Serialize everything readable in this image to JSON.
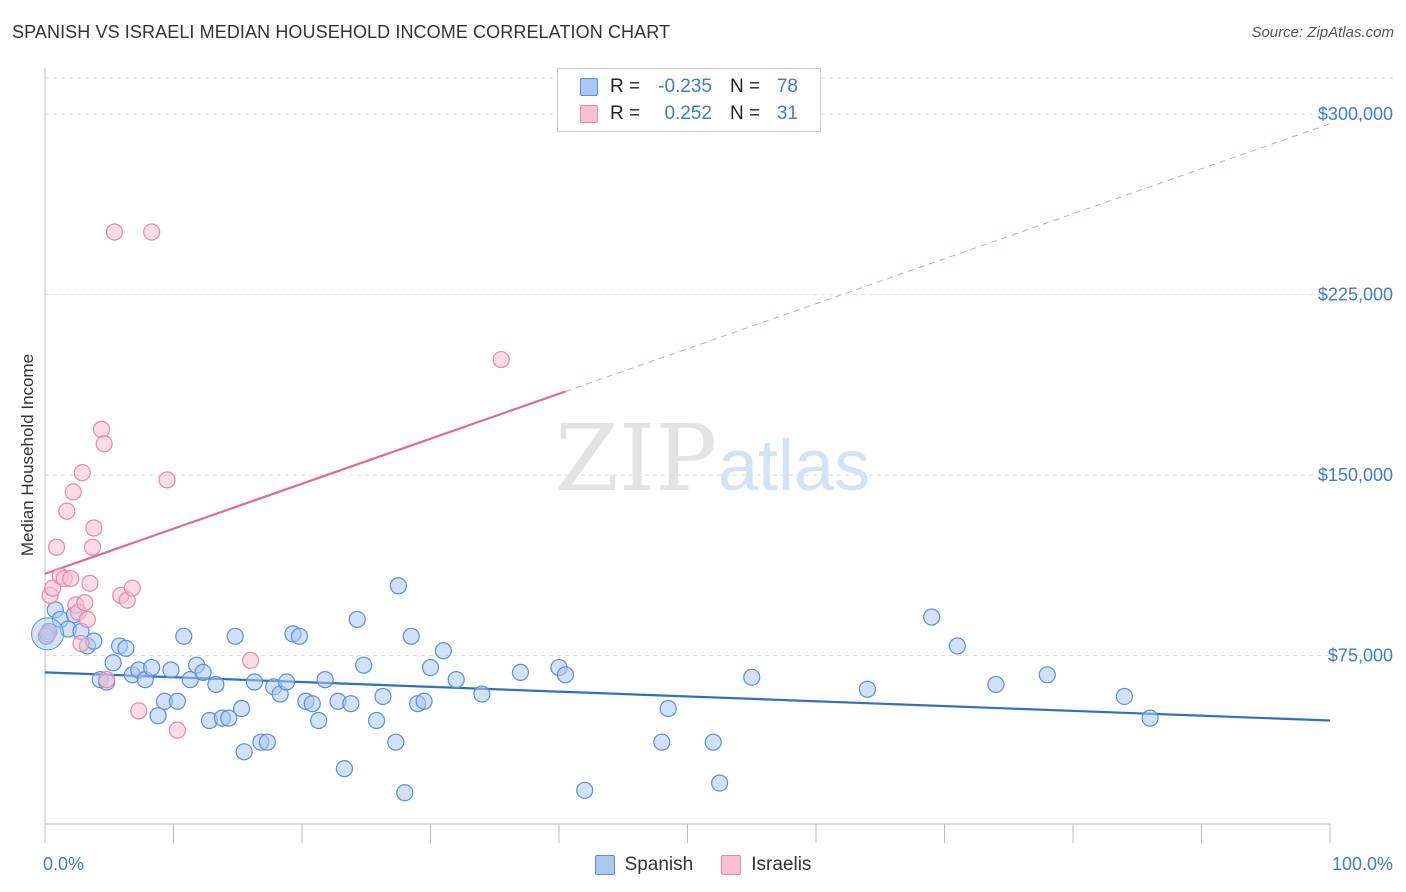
{
  "title": "SPANISH VS ISRAELI MEDIAN HOUSEHOLD INCOME CORRELATION CHART",
  "source": "Source: ZipAtlas.com",
  "watermark": {
    "zip": "ZIP",
    "atlas": "atlas"
  },
  "legend": {
    "rows": [
      {
        "r_label": "R =",
        "r_value": "-0.235",
        "n_label": "N =",
        "n_value": "78",
        "color": "#a9c8f2",
        "border": "#5b8fd6"
      },
      {
        "r_label": "R =",
        "r_value": "0.252",
        "n_label": "N =",
        "n_value": "31",
        "color": "#f7bfd0",
        "border": "#e58aa8"
      }
    ]
  },
  "bottom_legend": [
    {
      "label": "Spanish",
      "color": "#a9c8f2",
      "border": "#5b8fd6"
    },
    {
      "label": "Israelis",
      "color": "#f7bfd0",
      "border": "#e58aa8"
    }
  ],
  "chart_data": {
    "type": "scatter",
    "title": "SPANISH VS ISRAELI MEDIAN HOUSEHOLD INCOME CORRELATION CHART",
    "xlabel": "",
    "ylabel": "Median Household Income",
    "xlim": [
      0,
      100
    ],
    "ylim": [
      5000,
      315000
    ],
    "x_tick_labels": [
      "0.0%",
      "100.0%"
    ],
    "y_ticks": [
      75000,
      150000,
      225000,
      300000
    ],
    "y_tick_labels": [
      "$75,000",
      "$150,000",
      "$225,000",
      "$300,000"
    ],
    "series": [
      {
        "name": "Spanish",
        "color": "#a9c8f2",
        "stroke": "#5b8fd6",
        "line_color": "#2f6fcc",
        "trend": {
          "x": [
            0,
            100
          ],
          "y": [
            68000,
            48000
          ],
          "dashed_from": null
        },
        "points": [
          [
            0.3,
            85000
          ],
          [
            0.8,
            94000
          ],
          [
            1.2,
            90000
          ],
          [
            1.8,
            86000
          ],
          [
            2.3,
            92000
          ],
          [
            2.8,
            85000
          ],
          [
            3.3,
            79000
          ],
          [
            3.8,
            81000
          ],
          [
            4.3,
            65000
          ],
          [
            4.8,
            64000
          ],
          [
            5.3,
            72000
          ],
          [
            5.8,
            79000
          ],
          [
            6.3,
            78000
          ],
          [
            6.8,
            67000
          ],
          [
            7.3,
            69000
          ],
          [
            7.8,
            65000
          ],
          [
            8.3,
            70000
          ],
          [
            8.8,
            50000
          ],
          [
            9.3,
            56000
          ],
          [
            9.8,
            69000
          ],
          [
            10.3,
            56000
          ],
          [
            10.8,
            83000
          ],
          [
            11.3,
            65000
          ],
          [
            11.8,
            71000
          ],
          [
            12.3,
            68000
          ],
          [
            12.8,
            48000
          ],
          [
            13.3,
            63000
          ],
          [
            13.8,
            49000
          ],
          [
            14.3,
            49000
          ],
          [
            14.8,
            83000
          ],
          [
            15.3,
            53000
          ],
          [
            15.5,
            35000
          ],
          [
            16.3,
            64000
          ],
          [
            16.8,
            39000
          ],
          [
            17.3,
            39000
          ],
          [
            17.8,
            62000
          ],
          [
            18.3,
            59000
          ],
          [
            18.8,
            64000
          ],
          [
            19.3,
            84000
          ],
          [
            19.8,
            83000
          ],
          [
            20.3,
            56000
          ],
          [
            20.8,
            55000
          ],
          [
            21.3,
            48000
          ],
          [
            21.8,
            65000
          ],
          [
            22.8,
            56000
          ],
          [
            23.3,
            28000
          ],
          [
            23.8,
            55000
          ],
          [
            24.3,
            90000
          ],
          [
            24.8,
            71000
          ],
          [
            25.8,
            48000
          ],
          [
            26.3,
            58000
          ],
          [
            27.3,
            39000
          ],
          [
            27.5,
            104000
          ],
          [
            28.0,
            18000
          ],
          [
            28.5,
            83000
          ],
          [
            29.0,
            55000
          ],
          [
            29.5,
            56000
          ],
          [
            30.0,
            70000
          ],
          [
            31.0,
            77000
          ],
          [
            32.0,
            65000
          ],
          [
            34.0,
            59000
          ],
          [
            37.0,
            68000
          ],
          [
            40.0,
            70000
          ],
          [
            40.5,
            67000
          ],
          [
            42.0,
            19000
          ],
          [
            48.0,
            39000
          ],
          [
            48.5,
            53000
          ],
          [
            52.0,
            39000
          ],
          [
            52.5,
            22000
          ],
          [
            55.0,
            66000
          ],
          [
            64.0,
            61000
          ],
          [
            69.0,
            91000
          ],
          [
            71.0,
            79000
          ],
          [
            74.0,
            63000
          ],
          [
            78.0,
            67000
          ],
          [
            84.0,
            58000
          ],
          [
            86.0,
            49000
          ],
          [
            0.1,
            83000
          ]
        ]
      },
      {
        "name": "Israelis",
        "color": "#f7bfd0",
        "stroke": "#e58aa8",
        "line_color": "#e06a93",
        "trend": {
          "x": [
            0,
            100
          ],
          "y": [
            109000,
            296000
          ],
          "dashed_from": 40.5
        },
        "points": [
          [
            0.2,
            84000
          ],
          [
            0.4,
            100000
          ],
          [
            0.6,
            103000
          ],
          [
            0.9,
            120000
          ],
          [
            1.2,
            108000
          ],
          [
            1.5,
            107000
          ],
          [
            1.7,
            135000
          ],
          [
            2.0,
            107000
          ],
          [
            2.2,
            143000
          ],
          [
            2.4,
            96000
          ],
          [
            2.6,
            93000
          ],
          [
            2.8,
            80000
          ],
          [
            2.9,
            151000
          ],
          [
            3.1,
            97000
          ],
          [
            3.3,
            90000
          ],
          [
            3.5,
            105000
          ],
          [
            3.7,
            120000
          ],
          [
            3.8,
            128000
          ],
          [
            4.4,
            169000
          ],
          [
            4.6,
            163000
          ],
          [
            4.8,
            65000
          ],
          [
            5.4,
            251000
          ],
          [
            5.9,
            100000
          ],
          [
            6.4,
            98000
          ],
          [
            6.8,
            103000
          ],
          [
            7.3,
            52000
          ],
          [
            8.3,
            251000
          ],
          [
            9.5,
            148000
          ],
          [
            10.3,
            44000
          ],
          [
            16.0,
            73000
          ],
          [
            35.5,
            198000
          ]
        ]
      }
    ]
  }
}
